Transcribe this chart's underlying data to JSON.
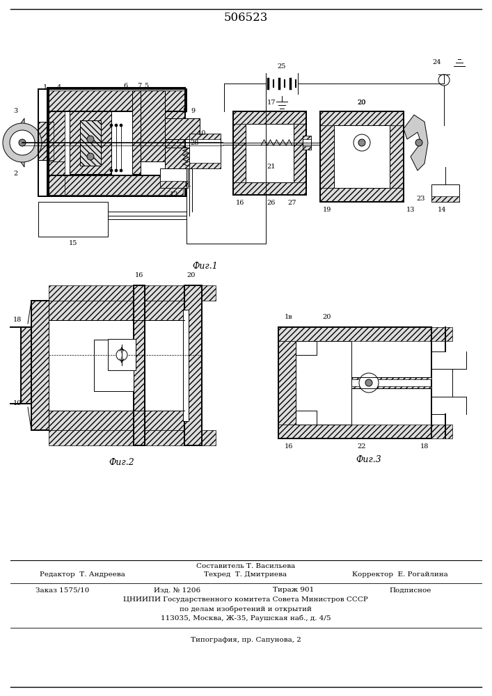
{
  "title": "506523",
  "bg_color": "#ffffff",
  "fig1_caption": "Фиг.1",
  "fig2_caption": "Фиг.2",
  "fig3_caption": "Фиг.3",
  "footer_sestavitel": "Составитель Т. Васильева",
  "footer_redaktor": "Редактор  Т. Андреева",
  "footer_tehred": "Техред  Т. Дмитриева",
  "footer_korrektor": "Корректор  Е. Рогайлина",
  "footer_zakaz": "Заказ 1575/10",
  "footer_izd": "Изд. № 1206",
  "footer_tirazh": "Тираж 901",
  "footer_podpisnoe": "Подписное",
  "footer_cniipI": "ЦНИИПИ Государственного комитета Совета Министров СССР",
  "footer_po_delam": "по делам изобретений и открытий",
  "footer_address": "113035, Москва, Ж-35, Раушская наб., д. 4/5",
  "footer_tipografia": "Типография, пр. Сапунова, 2",
  "lw": 0.7,
  "tlw": 1.4,
  "fs": 7,
  "fs_caption": 9
}
